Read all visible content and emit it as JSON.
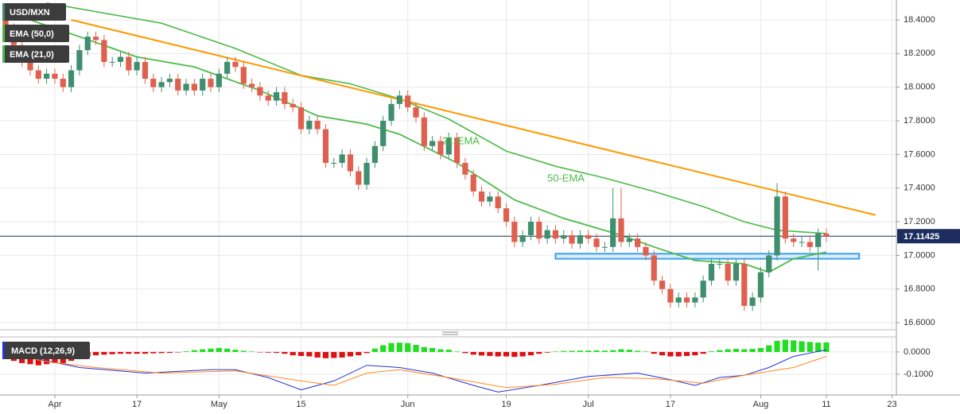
{
  "chart_data": [
    {
      "type": "candlestick",
      "title": "USD/MXN",
      "open": [
        18.4,
        18.35,
        18.25,
        18.15,
        18.1,
        18.05,
        18.08,
        18.05,
        18.0,
        18.1,
        18.22,
        18.3,
        18.28,
        18.15,
        18.15,
        18.18,
        18.1,
        18.15,
        18.05,
        18.0,
        18.03,
        18.05,
        17.98,
        18.02,
        17.98,
        18.05,
        18.0,
        18.08,
        18.15,
        18.12,
        18.02,
        18.0,
        17.95,
        17.92,
        17.97,
        17.9,
        17.88,
        17.75,
        17.8,
        17.75,
        17.55,
        17.55,
        17.6,
        17.5,
        17.42,
        17.55,
        17.65,
        17.8,
        17.9,
        17.95,
        17.88,
        17.82,
        17.65,
        17.68,
        17.6,
        17.7,
        17.55,
        17.48,
        17.38,
        17.32,
        17.35,
        17.28,
        17.2,
        17.08,
        17.12,
        17.2,
        17.1,
        17.15,
        17.1,
        17.12,
        17.07,
        17.12,
        17.1,
        17.05,
        17.05,
        17.22,
        17.08,
        17.1,
        17.05,
        17.0,
        16.85,
        16.8,
        16.72,
        16.75,
        16.72,
        16.75,
        16.85,
        16.95,
        16.95,
        16.85,
        16.95,
        16.7,
        16.75,
        16.9,
        17.0,
        17.35,
        17.1,
        17.08,
        17.08,
        17.05,
        17.13
      ],
      "high": [
        18.43,
        18.38,
        18.28,
        18.18,
        18.13,
        18.11,
        18.11,
        18.08,
        18.13,
        18.25,
        18.33,
        18.33,
        18.31,
        18.18,
        18.21,
        18.21,
        18.18,
        18.18,
        18.08,
        18.06,
        18.08,
        18.08,
        18.05,
        18.05,
        18.08,
        18.08,
        18.11,
        18.18,
        18.18,
        18.15,
        18.05,
        18.03,
        17.98,
        18.0,
        18.0,
        17.93,
        17.91,
        17.83,
        17.83,
        17.78,
        17.58,
        17.63,
        17.63,
        17.53,
        17.58,
        17.68,
        17.83,
        17.93,
        17.98,
        17.98,
        17.91,
        17.85,
        17.71,
        17.71,
        17.73,
        17.73,
        17.58,
        17.51,
        17.41,
        17.38,
        17.38,
        17.31,
        17.23,
        17.15,
        17.23,
        17.23,
        17.18,
        17.18,
        17.15,
        17.15,
        17.15,
        17.15,
        17.13,
        17.08,
        17.4,
        17.4,
        17.13,
        17.13,
        17.08,
        17.03,
        16.88,
        16.83,
        16.78,
        16.78,
        16.78,
        16.88,
        16.98,
        16.98,
        16.98,
        16.98,
        16.98,
        16.78,
        16.93,
        17.03,
        17.43,
        17.38,
        17.13,
        17.11,
        17.11,
        17.16,
        17.16
      ],
      "low": [
        18.32,
        18.22,
        18.12,
        18.07,
        18.02,
        18.02,
        18.02,
        17.97,
        17.97,
        18.07,
        18.19,
        18.25,
        18.12,
        18.12,
        18.12,
        18.07,
        18.07,
        18.02,
        17.97,
        17.97,
        18.0,
        17.95,
        17.95,
        17.95,
        17.95,
        17.97,
        17.97,
        18.05,
        18.09,
        17.99,
        17.97,
        17.92,
        17.89,
        17.89,
        17.87,
        17.85,
        17.72,
        17.72,
        17.72,
        17.52,
        17.52,
        17.52,
        17.47,
        17.39,
        17.39,
        17.52,
        17.62,
        17.77,
        17.87,
        17.85,
        17.79,
        17.62,
        17.62,
        17.57,
        17.57,
        17.52,
        17.45,
        17.35,
        17.29,
        17.29,
        17.25,
        17.17,
        17.05,
        17.05,
        17.09,
        17.07,
        17.07,
        17.07,
        17.07,
        17.04,
        17.04,
        17.07,
        17.02,
        17.02,
        17.02,
        17.05,
        17.05,
        17.02,
        16.97,
        16.82,
        16.77,
        16.69,
        16.69,
        16.69,
        16.69,
        16.72,
        16.82,
        16.92,
        16.82,
        16.82,
        16.67,
        16.67,
        16.72,
        16.87,
        16.97,
        17.07,
        17.05,
        17.05,
        17.02,
        16.91,
        17.08
      ],
      "close": [
        18.35,
        18.25,
        18.15,
        18.1,
        18.05,
        18.08,
        18.05,
        18.0,
        18.1,
        18.22,
        18.3,
        18.28,
        18.15,
        18.15,
        18.18,
        18.1,
        18.15,
        18.05,
        18.0,
        18.03,
        18.05,
        17.98,
        18.02,
        17.98,
        18.05,
        18.0,
        18.08,
        18.15,
        18.12,
        18.02,
        18.0,
        17.95,
        17.92,
        17.97,
        17.9,
        17.88,
        17.75,
        17.8,
        17.75,
        17.55,
        17.55,
        17.6,
        17.5,
        17.42,
        17.55,
        17.65,
        17.8,
        17.9,
        17.95,
        17.88,
        17.82,
        17.65,
        17.68,
        17.6,
        17.7,
        17.55,
        17.48,
        17.38,
        17.32,
        17.35,
        17.28,
        17.2,
        17.08,
        17.12,
        17.2,
        17.1,
        17.15,
        17.1,
        17.12,
        17.07,
        17.12,
        17.1,
        17.05,
        17.05,
        17.22,
        17.08,
        17.1,
        17.05,
        17.0,
        16.85,
        16.8,
        16.72,
        16.75,
        16.72,
        16.75,
        16.85,
        16.95,
        16.95,
        16.85,
        16.95,
        16.7,
        16.75,
        16.9,
        17.0,
        17.35,
        17.1,
        17.08,
        17.08,
        17.05,
        17.13,
        17.11425
      ],
      "up_color": "#3f8f6f",
      "down_color": "#e0604f",
      "xlim": [
        -0.68,
        108.53
      ],
      "xticks": [
        {
          "value": 6,
          "label": "Apr"
        },
        {
          "value": 16,
          "label": "17"
        },
        {
          "value": 26,
          "label": "May"
        },
        {
          "value": 36,
          "label": "15"
        },
        {
          "value": 49,
          "label": "Jun"
        },
        {
          "value": 61,
          "label": "19"
        },
        {
          "value": 71,
          "label": "Jul"
        },
        {
          "value": 81,
          "label": "17"
        },
        {
          "value": 92,
          "label": "Aug"
        },
        {
          "value": 100,
          "label": "11"
        },
        {
          "value": 108,
          "label": "23"
        }
      ],
      "ylim": [
        16.558,
        18.518
      ],
      "yticks": [
        {
          "value": 18.4,
          "label": "18.4000"
        },
        {
          "value": 18.2,
          "label": "18.2000"
        },
        {
          "value": 18,
          "label": "18.0000"
        },
        {
          "value": 17.8,
          "label": "17.8000"
        },
        {
          "value": 17.6,
          "label": "17.6000"
        },
        {
          "value": 17.4,
          "label": "17.4000"
        },
        {
          "value": 17.2,
          "label": "17.2000"
        },
        {
          "value": 17,
          "label": "17.0000"
        },
        {
          "value": 16.8,
          "label": "16.8000"
        },
        {
          "value": 16.6,
          "label": "16.6000"
        }
      ],
      "grid": true,
      "lines": [
        {
          "name": "EMA (50,0)",
          "label": "50-EMA",
          "color": "#4cbb47",
          "x": [
            5,
            19,
            28,
            36,
            42,
            48,
            54,
            61,
            67,
            73,
            79,
            85,
            90,
            94,
            100
          ],
          "values": [
            18.5,
            18.38,
            18.23,
            18.07,
            18.02,
            17.93,
            17.81,
            17.62,
            17.53,
            17.46,
            17.38,
            17.29,
            17.2,
            17.15,
            17.13
          ]
        },
        {
          "name": "EMA (21,0)",
          "label": "21-EMA",
          "color": "#4cbb47",
          "x": [
            0,
            9,
            16,
            23,
            31,
            38,
            44,
            48,
            55,
            62,
            68,
            75,
            79,
            84,
            90,
            93,
            96,
            100
          ],
          "values": [
            18.45,
            18.3,
            18.18,
            18.12,
            17.98,
            17.83,
            17.78,
            17.72,
            17.55,
            17.33,
            17.22,
            17.12,
            17.05,
            16.97,
            16.95,
            16.9,
            16.98,
            17.02
          ]
        }
      ],
      "trendline": {
        "color": "#ff9800",
        "x": [
          8,
          106
        ],
        "values": [
          18.4,
          17.24
        ]
      },
      "support_zone": {
        "color": "#3aa0ef",
        "x": [
          67,
          104
        ],
        "values": [
          16.98,
          17.01
        ]
      },
      "current_price": 17.11425
    },
    {
      "type": "macd",
      "title": "MACD (12,26,9)",
      "histogram": [
        -0.03,
        -0.04,
        -0.05,
        -0.055,
        -0.06,
        -0.055,
        -0.05,
        -0.05,
        -0.04,
        -0.03,
        -0.02,
        -0.015,
        -0.012,
        -0.01,
        -0.008,
        -0.008,
        -0.008,
        -0.008,
        -0.006,
        -0.005,
        -0.004,
        -0.002,
        0.003,
        0.008,
        0.012,
        0.015,
        0.018,
        0.015,
        0.01,
        0.005,
        0.002,
        -0.002,
        -0.003,
        -0.004,
        -0.008,
        -0.015,
        -0.018,
        -0.02,
        -0.025,
        -0.028,
        -0.027,
        -0.025,
        -0.02,
        -0.015,
        -0.005,
        0.015,
        0.03,
        0.04,
        0.042,
        0.04,
        0.032,
        0.022,
        0.018,
        0.012,
        0.01,
        0.002,
        -0.005,
        -0.012,
        -0.016,
        -0.018,
        -0.02,
        -0.02,
        -0.022,
        -0.02,
        -0.015,
        -0.008,
        -0.003,
        0.002,
        0.004,
        0.005,
        0.006,
        0.006,
        0.007,
        0.006,
        0.008,
        0.012,
        0.01,
        0.005,
        0.002,
        -0.008,
        -0.015,
        -0.02,
        -0.02,
        -0.018,
        -0.015,
        -0.008,
        0.003,
        0.008,
        0.012,
        0.014,
        0.012,
        0.014,
        0.018,
        0.03,
        0.05,
        0.055,
        0.052,
        0.048,
        0.045,
        0.042,
        0.043
      ],
      "up_color": "#22dd22",
      "down_color": "#e01010",
      "lines": [
        {
          "color": "#2431d8",
          "x": [
            0,
            3,
            9,
            17,
            25,
            28,
            32,
            36,
            40,
            44,
            48,
            52,
            57,
            60,
            65,
            71,
            77,
            81,
            84,
            87,
            90,
            93,
            96,
            100
          ],
          "values": [
            0.01,
            -0.025,
            -0.07,
            -0.095,
            -0.08,
            -0.08,
            -0.115,
            -0.17,
            -0.13,
            -0.06,
            -0.07,
            -0.095,
            -0.15,
            -0.18,
            -0.15,
            -0.11,
            -0.095,
            -0.125,
            -0.15,
            -0.115,
            -0.105,
            -0.07,
            -0.02,
            0.01
          ]
        },
        {
          "color": "#ff8a1f",
          "x": [
            0,
            5,
            11,
            19,
            28,
            36,
            40,
            44,
            48,
            54,
            61,
            67,
            73,
            79,
            85,
            90,
            96,
            100
          ],
          "values": [
            -0.007,
            -0.043,
            -0.07,
            -0.095,
            -0.085,
            -0.13,
            -0.15,
            -0.095,
            -0.08,
            -0.115,
            -0.16,
            -0.145,
            -0.115,
            -0.12,
            -0.14,
            -0.105,
            -0.07,
            -0.02
          ]
        }
      ],
      "ylim": [
        -0.193,
        0.064
      ],
      "yticks": [
        {
          "value": 0,
          "label": "0.0000"
        },
        {
          "value": -0.1,
          "label": "-0.1000"
        }
      ]
    }
  ]
}
